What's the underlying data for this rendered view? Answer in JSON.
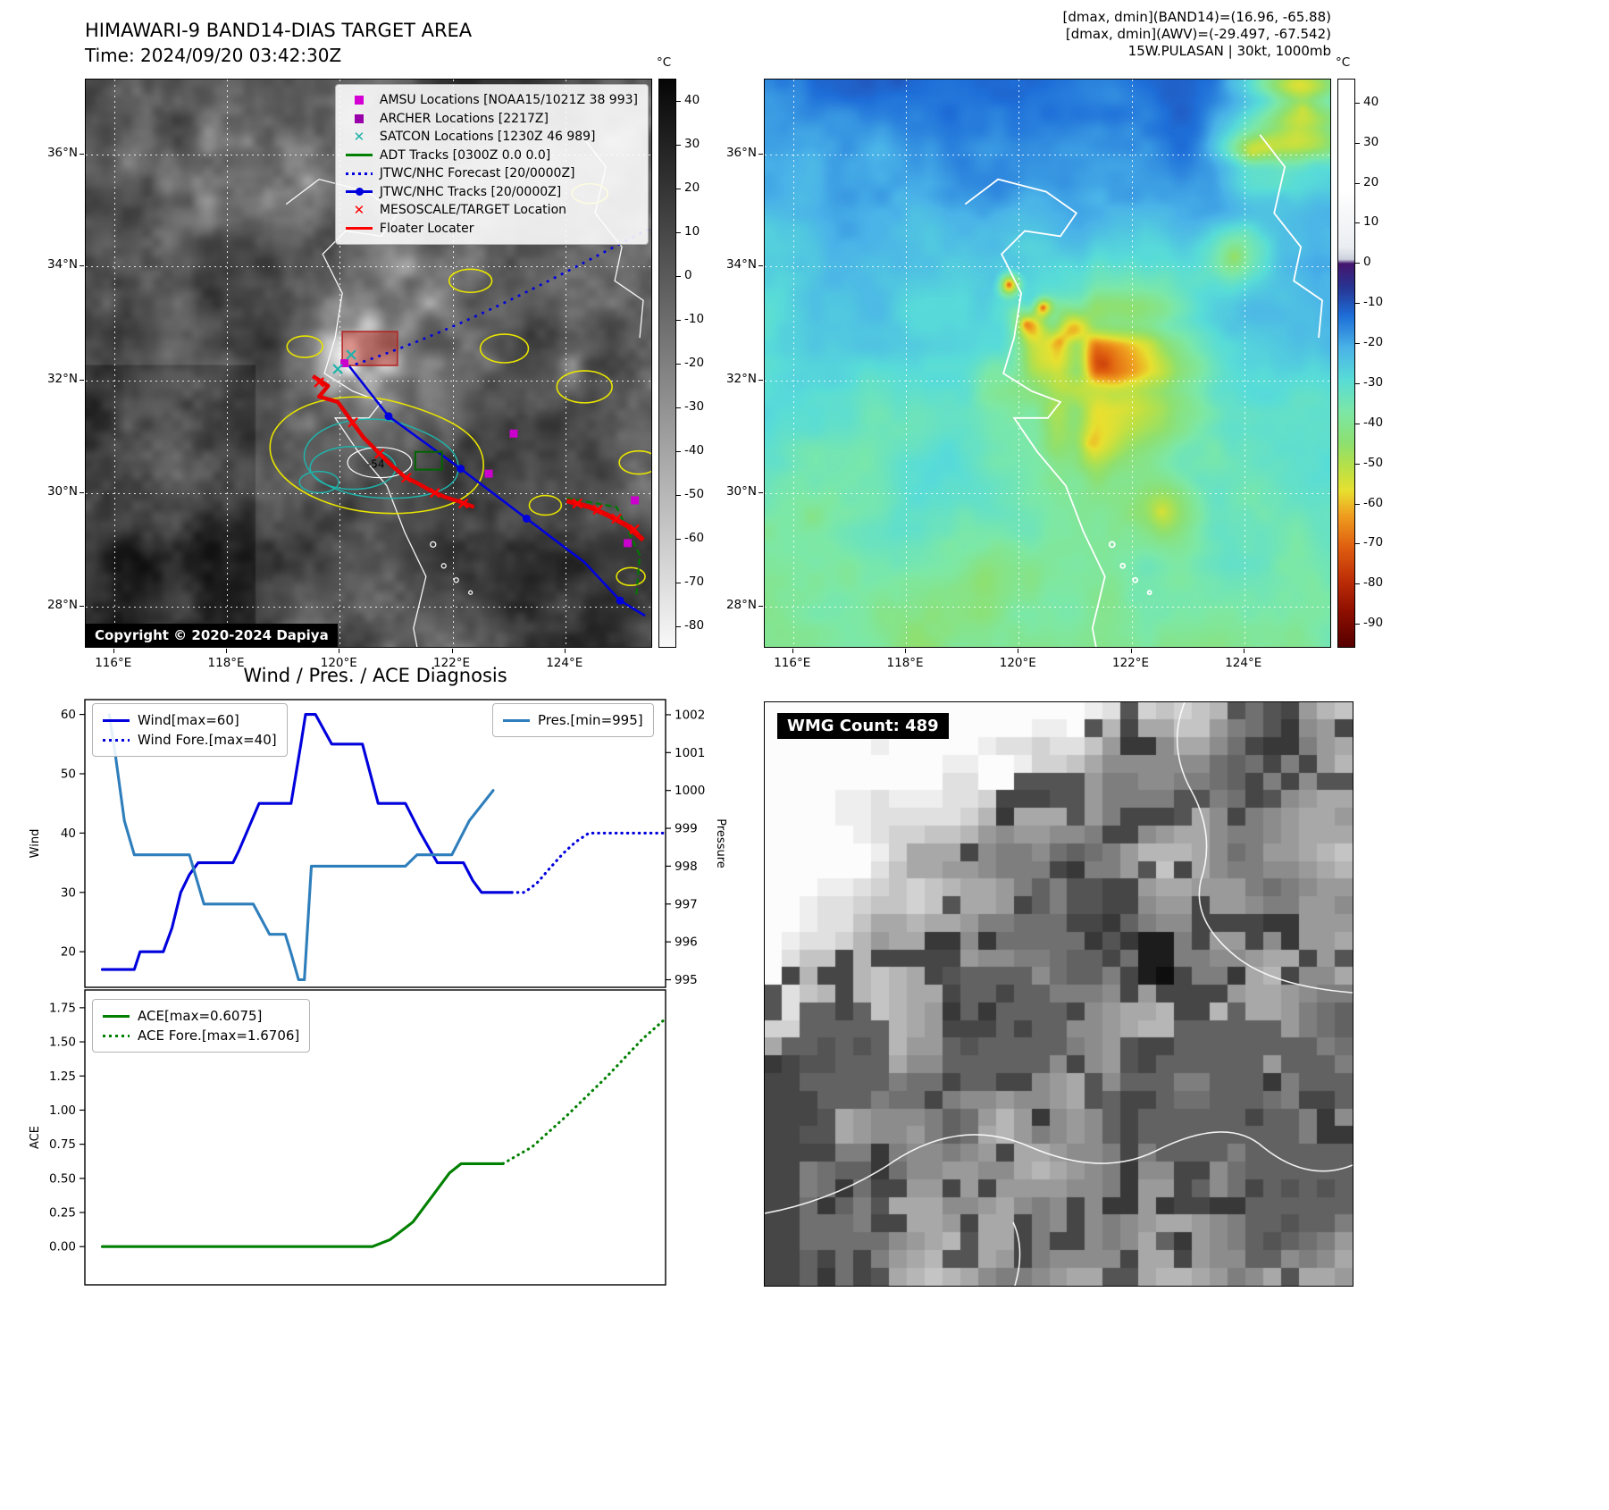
{
  "band14": {
    "title": "HIMAWARI-9 BAND14-DIAS TARGET AREA",
    "time_label": "Time: 2024/09/20 03:42:30Z",
    "copyright": "Copyright © 2020-2024 Dapiya",
    "contour_label": "-54",
    "colorbar": {
      "unit": "°C",
      "domain": [
        45,
        -85
      ],
      "ticks": [
        40,
        30,
        20,
        10,
        0,
        -10,
        -20,
        -30,
        -40,
        -50,
        -60,
        -70,
        -80
      ]
    },
    "axis": {
      "x_ticks": [
        "116°E",
        "118°E",
        "120°E",
        "122°E",
        "124°E"
      ],
      "y_ticks": [
        "36°N",
        "34°N",
        "32°N",
        "30°N",
        "28°N"
      ]
    },
    "legend": [
      {
        "marker": "square",
        "color": "#d400d4",
        "label": "AMSU Locations [NOAA15/1021Z 38 993]"
      },
      {
        "marker": "square",
        "color": "#9900aa",
        "label": "ARCHER Locations [2217Z]"
      },
      {
        "marker": "x",
        "color": "#20b2aa",
        "label": "SATCON Locations [1230Z 46 989]"
      },
      {
        "marker": "line",
        "color": "#008000",
        "label": "ADT Tracks [0300Z 0.0 0.0]"
      },
      {
        "marker": "dotted-line",
        "color": "#0000dd",
        "label": "JTWC/NHC Forecast [20/0000Z]"
      },
      {
        "marker": "line-dot",
        "color": "#0000dd",
        "label": "JTWC/NHC Tracks [20/0000Z]"
      },
      {
        "marker": "x",
        "color": "#ff0000",
        "label": "MESOSCALE/TARGET Location"
      },
      {
        "marker": "line",
        "color": "#ff0000",
        "label": "Floater Locater"
      }
    ]
  },
  "awv": {
    "annotation_lines": [
      "[dmax, dmin](BAND14)=(16.96, -65.88)",
      "[dmax, dmin](AWV)=(-29.497, -67.542)",
      "15W.PULASAN | 30kt, 1000mb"
    ],
    "colorbar": {
      "unit": "°C",
      "domain": [
        46,
        -96
      ],
      "ticks": [
        40,
        30,
        20,
        10,
        0,
        -10,
        -20,
        -30,
        -40,
        -50,
        -60,
        -70,
        -80,
        -90
      ]
    },
    "axis": {
      "x_ticks": [
        "116°E",
        "118°E",
        "120°E",
        "122°E",
        "124°E"
      ],
      "y_ticks": [
        "36°N",
        "34°N",
        "32°N",
        "30°N",
        "28°N"
      ]
    }
  },
  "diagnosis": {
    "title": "Wind / Pres. / ACE Diagnosis"
  },
  "wmg": {
    "count_label": "WMG Count: 489"
  },
  "chart_data": [
    {
      "type": "line",
      "title": "Wind / Pres. / ACE Diagnosis",
      "xlabel": "",
      "x_note": "time axis, no tick labels shown",
      "ylabel": "Wind",
      "ylabel_right": "Pressure",
      "ylim": [
        14,
        62.5
      ],
      "yticks": [
        20,
        30,
        40,
        50,
        60
      ],
      "ytick_labels": [
        "20",
        "30",
        "40",
        "50",
        "60"
      ],
      "ylim_right": [
        994.8,
        1002.4
      ],
      "yticks_right": [
        995,
        996,
        997,
        998,
        999,
        1000,
        1001,
        1002
      ],
      "ytick_labels_right": [
        "995",
        "996",
        "997",
        "998",
        "999",
        "1000",
        "1001",
        "1002"
      ],
      "grid": false,
      "series": [
        {
          "name": "Wind[max=60]",
          "color": "#0000dd",
          "style": "solid",
          "axis": "left",
          "points": [
            [
              0.03,
              17
            ],
            [
              0.085,
              17
            ],
            [
              0.095,
              20
            ],
            [
              0.135,
              20
            ],
            [
              0.15,
              24
            ],
            [
              0.165,
              30
            ],
            [
              0.18,
              33
            ],
            [
              0.195,
              35
            ],
            [
              0.255,
              35
            ],
            [
              0.265,
              37
            ],
            [
              0.3,
              45
            ],
            [
              0.355,
              45
            ],
            [
              0.372,
              55
            ],
            [
              0.38,
              60
            ],
            [
              0.397,
              60
            ],
            [
              0.425,
              55
            ],
            [
              0.478,
              55
            ],
            [
              0.505,
              45
            ],
            [
              0.552,
              45
            ],
            [
              0.578,
              40
            ],
            [
              0.607,
              35
            ],
            [
              0.652,
              35
            ],
            [
              0.668,
              32
            ],
            [
              0.683,
              30
            ],
            [
              0.735,
              30
            ]
          ]
        },
        {
          "name": "Wind Fore.[max=40]",
          "color": "#0000dd",
          "style": "dotted",
          "axis": "left",
          "points": [
            [
              0.735,
              30
            ],
            [
              0.757,
              30
            ],
            [
              0.778,
              31.5
            ],
            [
              0.8,
              34
            ],
            [
              0.823,
              36.5
            ],
            [
              0.845,
              38.5
            ],
            [
              0.868,
              40
            ],
            [
              1.0,
              40
            ]
          ]
        },
        {
          "name": "Pres.[min=995]",
          "color": "#2e7ebc",
          "style": "solid",
          "axis": "right",
          "points": [
            [
              0.042,
              1002
            ],
            [
              0.052,
              1001
            ],
            [
              0.068,
              999.2
            ],
            [
              0.085,
              998.3
            ],
            [
              0.18,
              998.3
            ],
            [
              0.205,
              997
            ],
            [
              0.29,
              997
            ],
            [
              0.318,
              996.2
            ],
            [
              0.345,
              996.2
            ],
            [
              0.355,
              995.7
            ],
            [
              0.368,
              995
            ],
            [
              0.378,
              995
            ],
            [
              0.39,
              998
            ],
            [
              0.552,
              998
            ],
            [
              0.572,
              998.3
            ],
            [
              0.632,
              998.3
            ],
            [
              0.662,
              999.2
            ],
            [
              0.703,
              1000
            ]
          ]
        }
      ],
      "legend_left_box": [
        "Wind[max=60]",
        "Wind Fore.[max=40]"
      ],
      "legend_right_box": [
        "Pres.[min=995]"
      ]
    },
    {
      "type": "line",
      "xlabel": "",
      "ylabel": "ACE",
      "ylim": [
        -0.28,
        1.88
      ],
      "yticks": [
        0,
        0.25,
        0.5,
        0.75,
        1,
        1.25,
        1.5,
        1.75
      ],
      "ytick_labels": [
        "0.00",
        "0.25",
        "0.50",
        "0.75",
        "1.00",
        "1.25",
        "1.50",
        "1.75"
      ],
      "grid": false,
      "series": [
        {
          "name": "ACE[max=0.6075]",
          "color": "#008000",
          "style": "solid",
          "axis": "left",
          "points": [
            [
              0.03,
              0.0
            ],
            [
              0.495,
              0.0
            ],
            [
              0.525,
              0.05
            ],
            [
              0.565,
              0.18
            ],
            [
              0.6,
              0.38
            ],
            [
              0.628,
              0.54
            ],
            [
              0.648,
              0.6075
            ],
            [
              0.72,
              0.6075
            ]
          ]
        },
        {
          "name": "ACE Fore.[max=1.6706]",
          "color": "#008000",
          "style": "dotted",
          "axis": "left",
          "points": [
            [
              0.72,
              0.6075
            ],
            [
              0.77,
              0.73
            ],
            [
              0.83,
              0.96
            ],
            [
              0.9,
              1.25
            ],
            [
              0.96,
              1.52
            ],
            [
              1.0,
              1.6706
            ]
          ]
        }
      ],
      "legend_left_box": [
        "ACE[max=0.6075]",
        "ACE Fore.[max=1.6706]"
      ]
    }
  ]
}
